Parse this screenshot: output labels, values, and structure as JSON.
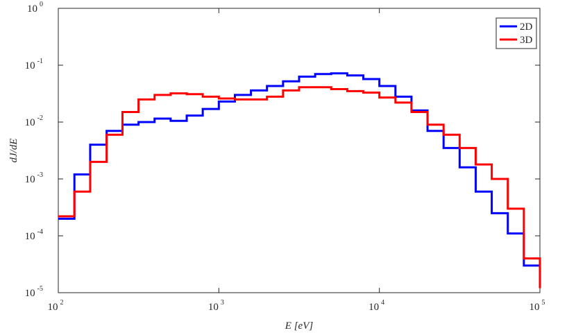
{
  "chart_data": {
    "type": "step",
    "xlabel": "E [eV]",
    "ylabel": "dJ/dE",
    "xscale": "log",
    "yscale": "log",
    "xlim": [
      100,
      100000
    ],
    "ylim": [
      1e-05,
      1
    ],
    "xticks": [
      {
        "value": 100,
        "label": "10",
        "exponent": "2"
      },
      {
        "value": 1000,
        "label": "10",
        "exponent": "3"
      },
      {
        "value": 10000,
        "label": "10",
        "exponent": "4"
      },
      {
        "value": 100000,
        "label": "10",
        "exponent": "5"
      }
    ],
    "yticks": [
      {
        "value": 1e-05,
        "label": "10",
        "exponent": "-5"
      },
      {
        "value": 0.0001,
        "label": "10",
        "exponent": "-4"
      },
      {
        "value": 0.001,
        "label": "10",
        "exponent": "-3"
      },
      {
        "value": 0.01,
        "label": "10",
        "exponent": "-2"
      },
      {
        "value": 0.1,
        "label": "10",
        "exponent": "-1"
      },
      {
        "value": 1,
        "label": "10",
        "exponent": "0"
      }
    ],
    "legend": "upper right",
    "x": [
      100,
      126,
      158,
      200,
      251,
      316,
      398,
      501,
      631,
      794,
      1000,
      1259,
      1585,
      1995,
      2512,
      3162,
      3981,
      5012,
      6310,
      7943,
      10000,
      12589,
      15849,
      19953,
      25119,
      31623,
      39811,
      50119,
      63096,
      79433,
      100000
    ],
    "series": [
      {
        "name": "2D",
        "color": "#0000ff",
        "values": [
          0.0002,
          0.0012,
          0.004,
          0.007,
          0.009,
          0.01,
          0.0115,
          0.0105,
          0.013,
          0.017,
          0.023,
          0.03,
          0.036,
          0.043,
          0.052,
          0.063,
          0.07,
          0.072,
          0.066,
          0.057,
          0.043,
          0.028,
          0.016,
          0.007,
          0.0035,
          0.0016,
          0.0006,
          0.00025,
          0.00011,
          3e-05,
          1.3e-05
        ]
      },
      {
        "name": "3D",
        "color": "#ff0000",
        "values": [
          0.00022,
          0.0006,
          0.002,
          0.006,
          0.015,
          0.025,
          0.03,
          0.032,
          0.031,
          0.028,
          0.026,
          0.025,
          0.025,
          0.028,
          0.036,
          0.041,
          0.041,
          0.038,
          0.035,
          0.033,
          0.027,
          0.022,
          0.015,
          0.009,
          0.006,
          0.0035,
          0.0018,
          0.001,
          0.0003,
          4e-05,
          1.2e-05
        ]
      }
    ]
  }
}
